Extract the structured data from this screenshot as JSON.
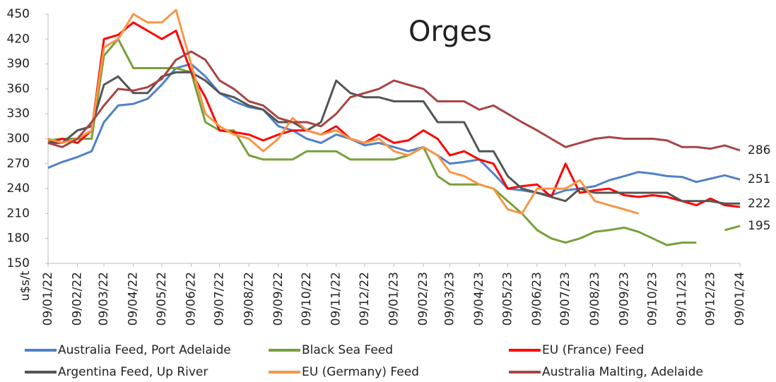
{
  "chart_data": {
    "type": "line",
    "title": "Orges",
    "y_label": "u$s/t",
    "x": [
      "09/01/22",
      "24/01/22",
      "09/02/22",
      "24/02/22",
      "09/03/22",
      "24/03/22",
      "09/04/22",
      "24/04/22",
      "09/05/22",
      "24/05/22",
      "09/06/22",
      "24/06/22",
      "09/07/22",
      "24/07/22",
      "09/08/22",
      "24/08/22",
      "09/09/22",
      "24/09/22",
      "09/10/22",
      "24/10/22",
      "09/11/22",
      "24/11/22",
      "09/12/22",
      "24/12/22",
      "09/01/23",
      "24/01/23",
      "09/02/23",
      "24/02/23",
      "09/03/23",
      "24/03/23",
      "09/04/23",
      "24/04/23",
      "09/05/23",
      "24/05/23",
      "09/06/23",
      "24/06/23",
      "09/07/23",
      "24/07/23",
      "09/08/23",
      "24/08/23",
      "09/09/23",
      "24/09/23",
      "09/10/23",
      "24/10/23",
      "09/11/23",
      "24/11/23",
      "09/12/23",
      "24/12/23",
      "09/01/24"
    ],
    "xlim": [
      "09/01/22",
      "09/01/24"
    ],
    "xticks": [
      "09/01/22",
      "09/02/22",
      "09/03/22",
      "09/04/22",
      "09/05/22",
      "09/06/22",
      "09/07/22",
      "09/08/22",
      "09/09/22",
      "09/10/22",
      "09/11/22",
      "09/12/22",
      "09/01/23",
      "09/02/23",
      "09/03/23",
      "09/04/23",
      "09/05/23",
      "09/06/23",
      "09/07/23",
      "09/08/23",
      "09/09/23",
      "09/10/23",
      "09/11/23",
      "09/12/23",
      "09/01/24"
    ],
    "ylim": [
      150,
      450
    ],
    "yticks": [
      150,
      180,
      210,
      240,
      270,
      300,
      330,
      360,
      390,
      420,
      450
    ],
    "grid": false,
    "series": [
      {
        "name": "Australia Feed, Port Adelaide",
        "color": "#4f81c7",
        "end_label": 251,
        "values": [
          265,
          272,
          278,
          285,
          320,
          340,
          342,
          348,
          365,
          385,
          390,
          375,
          355,
          345,
          338,
          335,
          315,
          310,
          300,
          295,
          305,
          300,
          292,
          295,
          290,
          285,
          290,
          280,
          270,
          272,
          275,
          258,
          240,
          238,
          235,
          232,
          238,
          240,
          243,
          250,
          255,
          260,
          258,
          255,
          254,
          248,
          252,
          256,
          251
        ]
      },
      {
        "name": "Black Sea Feed",
        "color": "#77a03a",
        "end_label": 195,
        "values": [
          298,
          300,
          300,
          300,
          400,
          420,
          385,
          385,
          385,
          385,
          380,
          320,
          310,
          310,
          280,
          275,
          275,
          275,
          285,
          285,
          285,
          275,
          275,
          275,
          275,
          280,
          290,
          255,
          245,
          245,
          245,
          240,
          225,
          210,
          190,
          180,
          175,
          180,
          188,
          190,
          193,
          188,
          180,
          172,
          175,
          175,
          null,
          190,
          195
        ]
      },
      {
        "name": "EU (France) Feed",
        "color": "#ff0000",
        "values": [
          295,
          300,
          295,
          310,
          420,
          425,
          440,
          430,
          420,
          430,
          380,
          350,
          310,
          308,
          305,
          298,
          305,
          310,
          310,
          305,
          315,
          300,
          295,
          305,
          295,
          298,
          310,
          300,
          280,
          285,
          275,
          270,
          240,
          243,
          245,
          230,
          270,
          235,
          238,
          240,
          232,
          230,
          232,
          230,
          225,
          220,
          228,
          220,
          218
        ]
      },
      {
        "name": "Argentina Feed, Up River",
        "color": "#555555",
        "end_label": 222,
        "values": [
          295,
          295,
          310,
          315,
          365,
          375,
          355,
          355,
          375,
          380,
          380,
          370,
          355,
          350,
          340,
          335,
          320,
          320,
          310,
          320,
          370,
          355,
          350,
          350,
          345,
          345,
          345,
          320,
          320,
          320,
          285,
          285,
          255,
          240,
          235,
          230,
          225,
          240,
          235,
          235,
          235,
          235,
          235,
          235,
          225,
          225,
          225,
          222,
          222
        ]
      },
      {
        "name": "EU (Germany) Feed",
        "color": "#f79646",
        "values": [
          300,
          295,
          300,
          310,
          410,
          420,
          450,
          440,
          440,
          455,
          390,
          330,
          315,
          305,
          300,
          285,
          300,
          325,
          310,
          305,
          310,
          300,
          295,
          300,
          285,
          280,
          290,
          280,
          260,
          255,
          245,
          240,
          215,
          210,
          240,
          240,
          240,
          250,
          225,
          220,
          215,
          210,
          null,
          null,
          null,
          null,
          null,
          null,
          null
        ]
      },
      {
        "name": "Australia Malting, Adelaide",
        "color": "#a84444",
        "end_label": 286,
        "values": [
          295,
          290,
          300,
          320,
          340,
          360,
          358,
          362,
          372,
          395,
          405,
          395,
          370,
          360,
          345,
          340,
          325,
          320,
          320,
          315,
          330,
          350,
          355,
          360,
          370,
          365,
          360,
          345,
          345,
          345,
          335,
          340,
          330,
          320,
          310,
          300,
          290,
          295,
          300,
          302,
          300,
          300,
          300,
          298,
          290,
          290,
          288,
          292,
          286
        ]
      }
    ]
  }
}
